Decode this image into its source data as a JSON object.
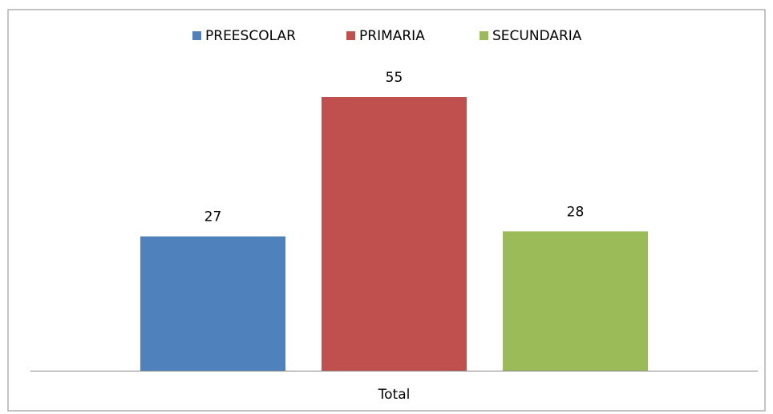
{
  "chart_data": {
    "type": "bar",
    "categories": [
      "Total"
    ],
    "series": [
      {
        "name": "PREESCOLAR",
        "color": "#4f81bd",
        "values": [
          27
        ]
      },
      {
        "name": "PRIMARIA",
        "color": "#c0504d",
        "values": [
          55
        ]
      },
      {
        "name": "SECUNDARIA",
        "color": "#9bbb59",
        "values": [
          28
        ]
      }
    ],
    "legend": "top"
  }
}
